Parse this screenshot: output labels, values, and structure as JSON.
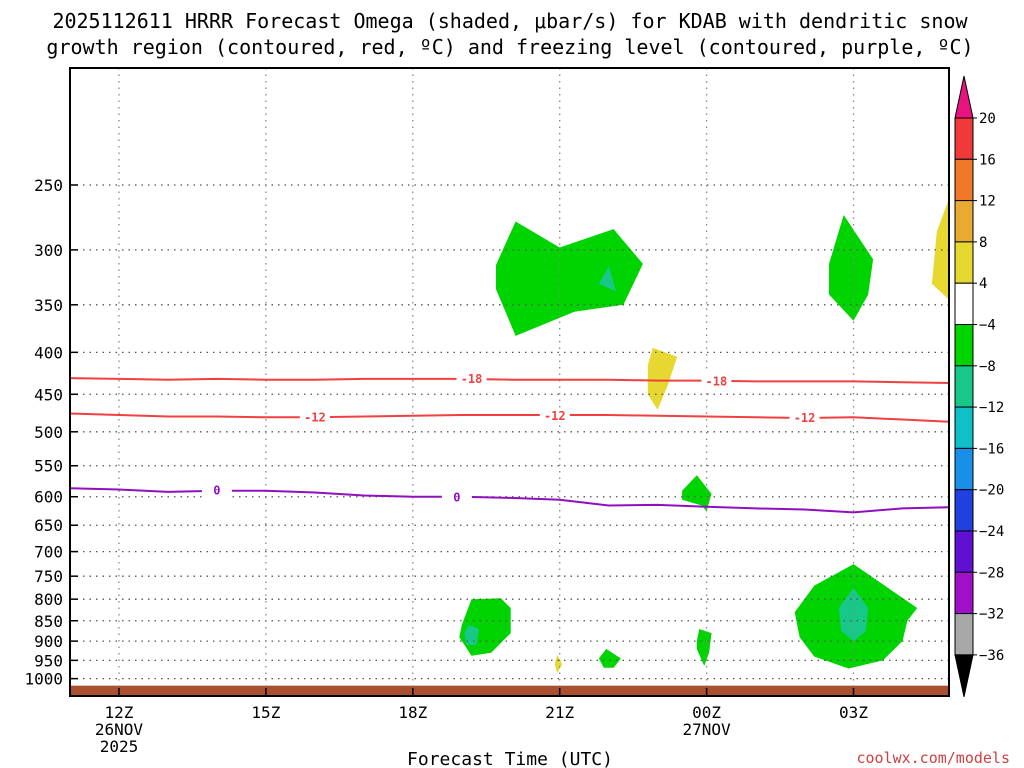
{
  "chart_data": {
    "type": "heatmap",
    "title_lines": [
      "2025112611 HRRR Forecast Omega (shaded, μbar/s) for KDAB with dendritic snow",
      "growth region (contoured, red, ºC) and freezing level (contoured, purple, ºC)"
    ],
    "xlabel": "Forecast Time (UTC)",
    "credit": "coolwx.com/models",
    "x_ticks": [
      {
        "hour": 12,
        "lines": [
          "12Z",
          "26NOV",
          "2025"
        ]
      },
      {
        "hour": 15,
        "lines": [
          "15Z"
        ]
      },
      {
        "hour": 18,
        "lines": [
          "18Z"
        ]
      },
      {
        "hour": 21,
        "lines": [
          "21Z"
        ]
      },
      {
        "hour": 24,
        "lines": [
          "00Z",
          "27NOV"
        ]
      },
      {
        "hour": 27,
        "lines": [
          "03Z"
        ]
      }
    ],
    "x_range": [
      11,
      28.95
    ],
    "y_range": [
      1050,
      180
    ],
    "y_scale": "log-pressure",
    "y_ticks": [
      250,
      300,
      350,
      400,
      450,
      500,
      550,
      600,
      650,
      700,
      750,
      800,
      850,
      900,
      950,
      1000
    ],
    "grid": "dotted",
    "colorbar": {
      "labels": [
        "20",
        "16",
        "12",
        "8",
        "4",
        "−4",
        "−8",
        "−12",
        "−16",
        "−20",
        "−24",
        "−28",
        "−32",
        "−36"
      ],
      "colors": [
        "#e8137e",
        "#f03a3a",
        "#f07828",
        "#e8aa30",
        "#e6d830",
        "#ffffff",
        "#00d400",
        "#18c888",
        "#10c0c8",
        "#1890e8",
        "#2040e0",
        "#6010d0",
        "#a010c8",
        "#a8a8a8",
        "#000000"
      ]
    },
    "series": [
      {
        "name": "-18",
        "color": "#f04040",
        "labels": [
          {
            "x": 19.2,
            "p": 431
          },
          {
            "x": 24.2,
            "p": 434
          }
        ],
        "x": [
          11,
          12,
          13,
          14,
          15,
          16,
          17,
          18,
          19,
          20,
          21,
          22,
          23,
          24,
          25,
          26,
          27,
          28,
          28.95
        ],
        "p": [
          430,
          431,
          432,
          431,
          432,
          432,
          431,
          431,
          431,
          432,
          432,
          432,
          433,
          433,
          434,
          434,
          434,
          435,
          436
        ]
      },
      {
        "name": "-12",
        "color": "#f04040",
        "labels": [
          {
            "x": 16.0,
            "p": 480
          },
          {
            "x": 20.9,
            "p": 478
          },
          {
            "x": 26.0,
            "p": 481
          }
        ],
        "x": [
          11,
          12,
          13,
          14,
          15,
          16,
          17,
          18,
          19,
          20,
          21,
          22,
          23,
          24,
          25,
          26,
          27,
          28,
          28.95
        ],
        "p": [
          475,
          477,
          479,
          479,
          480,
          480,
          479,
          478,
          477,
          477,
          477,
          477,
          478,
          479,
          480,
          481,
          480,
          483,
          486
        ]
      },
      {
        "name": "0",
        "color": "#9010c0",
        "labels": [
          {
            "x": 14.0,
            "p": 590
          },
          {
            "x": 18.9,
            "p": 601
          }
        ],
        "x": [
          11,
          12,
          13,
          14,
          15,
          16,
          17,
          18,
          19,
          20,
          21,
          22,
          23,
          24,
          25,
          26,
          27,
          28,
          28.95
        ],
        "p": [
          586,
          588,
          592,
          590,
          590,
          593,
          598,
          600,
          600,
          602,
          605,
          615,
          614,
          617,
          620,
          622,
          627,
          620,
          618
        ]
      }
    ],
    "omega_regions": [
      {
        "color": "#00d400",
        "points": [
          [
            19.7,
            313
          ],
          [
            20.1,
            277
          ],
          [
            21.0,
            298
          ],
          [
            22.1,
            283
          ],
          [
            22.7,
            312
          ],
          [
            22.3,
            350
          ],
          [
            21.3,
            357
          ],
          [
            20.1,
            382
          ],
          [
            19.7,
            335
          ]
        ]
      },
      {
        "color": "#18c888",
        "points": [
          [
            21.8,
            330
          ],
          [
            22.0,
            314
          ],
          [
            22.15,
            337
          ]
        ]
      },
      {
        "color": "#00d400",
        "points": [
          [
            26.5,
            312
          ],
          [
            26.8,
            272
          ],
          [
            27.4,
            308
          ],
          [
            27.3,
            340
          ],
          [
            27.0,
            366
          ],
          [
            26.5,
            340
          ]
        ]
      },
      {
        "color": "#00d400",
        "points": [
          [
            19.0,
            860
          ],
          [
            19.2,
            800
          ],
          [
            19.8,
            798
          ],
          [
            20.0,
            820
          ],
          [
            20.0,
            880
          ],
          [
            19.6,
            930
          ],
          [
            19.2,
            938
          ],
          [
            18.95,
            890
          ]
        ]
      },
      {
        "color": "#18c888",
        "points": [
          [
            19.05,
            880
          ],
          [
            19.15,
            860
          ],
          [
            19.35,
            870
          ],
          [
            19.3,
            910
          ],
          [
            19.1,
            910
          ]
        ]
      },
      {
        "color": "#00d400",
        "points": [
          [
            25.8,
            830
          ],
          [
            26.2,
            770
          ],
          [
            27.0,
            725
          ],
          [
            28.3,
            820
          ],
          [
            28.1,
            850
          ],
          [
            28.0,
            900
          ],
          [
            27.6,
            950
          ],
          [
            26.9,
            972
          ],
          [
            26.2,
            940
          ],
          [
            25.9,
            890
          ]
        ]
      },
      {
        "color": "#18c888",
        "points": [
          [
            26.7,
            820
          ],
          [
            27.0,
            775
          ],
          [
            27.3,
            820
          ],
          [
            27.25,
            875
          ],
          [
            27.0,
            900
          ],
          [
            26.75,
            875
          ]
        ]
      },
      {
        "color": "#00d400",
        "points": [
          [
            23.5,
            590
          ],
          [
            23.8,
            565
          ],
          [
            24.1,
            595
          ],
          [
            24.0,
            625
          ],
          [
            23.9,
            615
          ],
          [
            23.5,
            605
          ]
        ]
      },
      {
        "color": "#00d400",
        "points": [
          [
            23.8,
            900
          ],
          [
            23.85,
            870
          ],
          [
            24.1,
            880
          ],
          [
            24.05,
            930
          ],
          [
            23.95,
            965
          ],
          [
            23.8,
            920
          ]
        ]
      },
      {
        "color": "#00d400",
        "points": [
          [
            21.8,
            945
          ],
          [
            21.95,
            920
          ],
          [
            22.25,
            945
          ],
          [
            22.1,
            970
          ],
          [
            21.9,
            970
          ]
        ]
      },
      {
        "color": "#e6d830",
        "points": [
          [
            22.8,
            415
          ],
          [
            22.9,
            395
          ],
          [
            23.4,
            405
          ],
          [
            23.2,
            440
          ],
          [
            23.0,
            470
          ],
          [
            22.8,
            450
          ]
        ]
      },
      {
        "color": "#e6d830",
        "points": [
          [
            20.9,
            960
          ],
          [
            20.95,
            935
          ],
          [
            21.05,
            960
          ],
          [
            20.95,
            985
          ]
        ]
      },
      {
        "color": "#e6d830",
        "points": [
          [
            28.95,
            260
          ],
          [
            28.95,
            345
          ],
          [
            28.6,
            330
          ],
          [
            28.7,
            285
          ]
        ]
      }
    ],
    "terrain": {
      "color": "#a85030",
      "top_p": 1020
    }
  }
}
